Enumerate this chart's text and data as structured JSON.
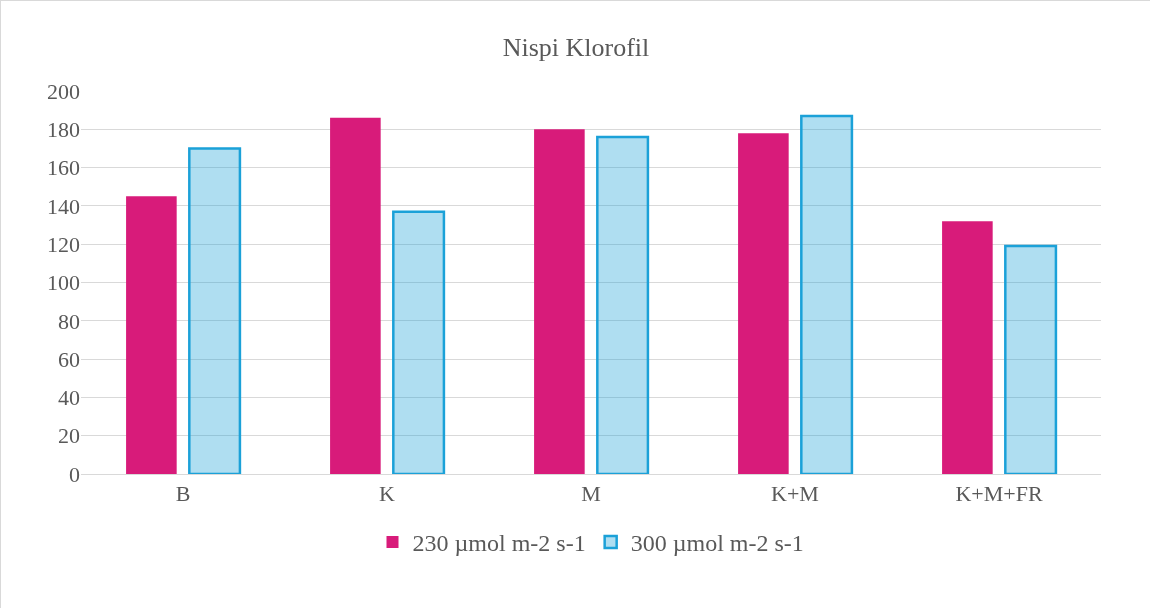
{
  "chart_data": {
    "type": "bar",
    "title": "Nispi Klorofil",
    "categories": [
      "B",
      "K",
      "M",
      "K+M",
      "K+M+FR"
    ],
    "series": [
      {
        "name": "230 µmol m-2 s-1",
        "color": "#d81b7a",
        "values": [
          145,
          186,
          180,
          178,
          132
        ]
      },
      {
        "name": "300 µmol m-2 s-1",
        "color": "#1ba1d8",
        "values": [
          170,
          137,
          176,
          187,
          119
        ]
      }
    ],
    "ylim": [
      0,
      200
    ],
    "yticks": [
      0,
      20,
      40,
      60,
      80,
      100,
      120,
      140,
      160,
      180,
      200
    ],
    "grid": "y",
    "legend": "bottom"
  }
}
